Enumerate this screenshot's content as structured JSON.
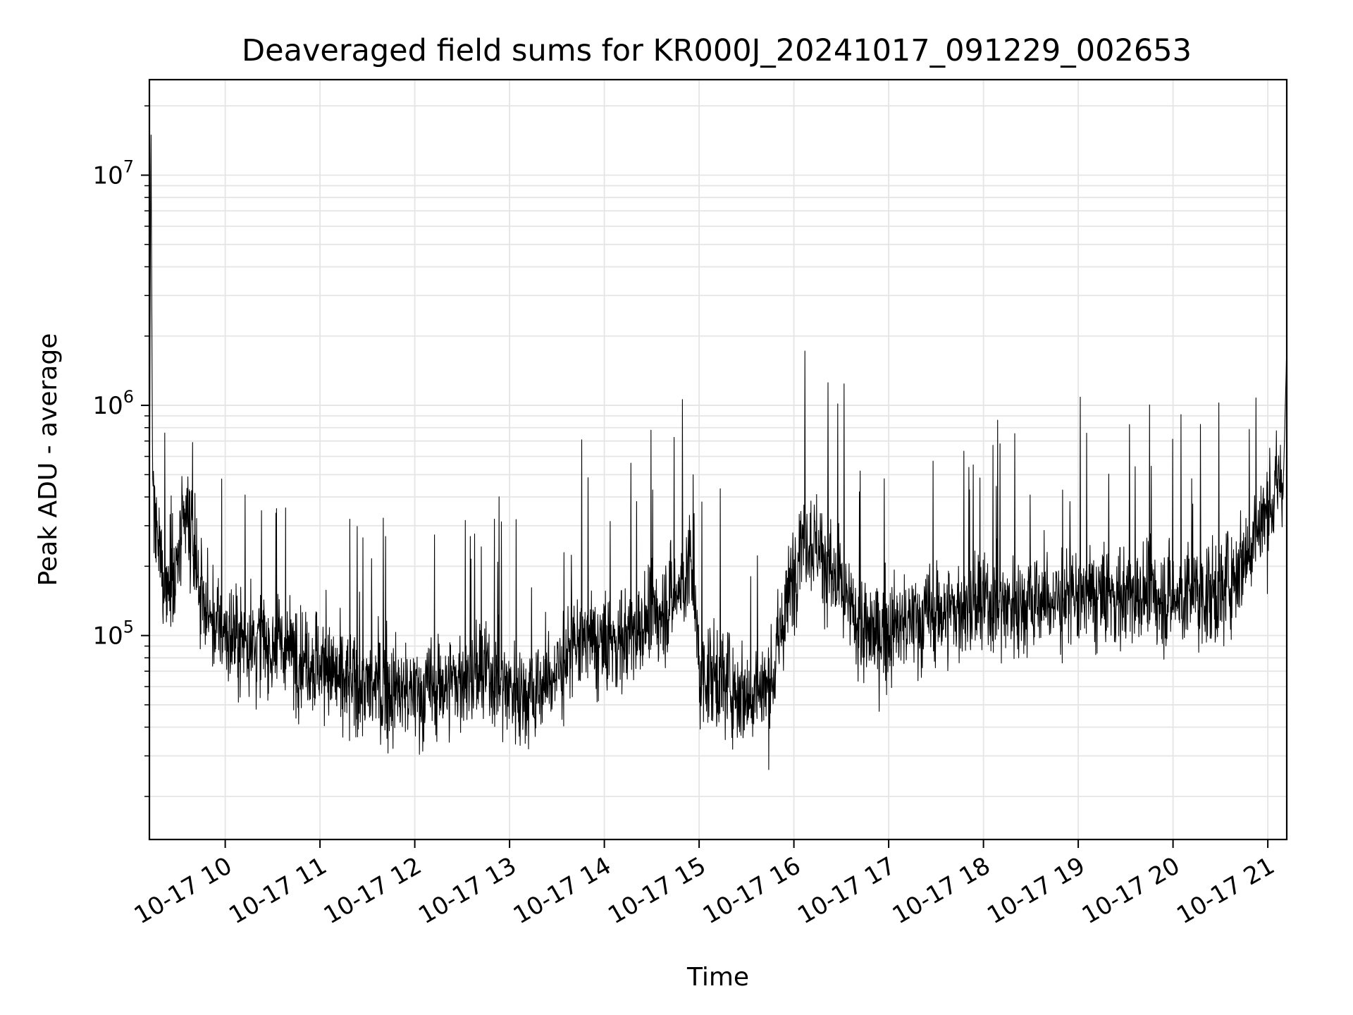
{
  "chart_data": {
    "type": "line",
    "title": "Deaveraged field sums for KR000J_20241017_091229_002653",
    "xlabel": "Time",
    "ylabel": "Peak ADU - average",
    "x_ticks": [
      "10-17 10",
      "10-17 11",
      "10-17 12",
      "10-17 13",
      "10-17 14",
      "10-17 15",
      "10-17 16",
      "10-17 17",
      "10-17 18",
      "10-17 19",
      "10-17 20",
      "10-17 21"
    ],
    "y_ticks": [
      {
        "base": "10",
        "exp": "5",
        "value": 100000
      },
      {
        "base": "10",
        "exp": "6",
        "value": 1000000
      },
      {
        "base": "10",
        "exp": "7",
        "value": 10000000
      }
    ],
    "y_scale": "log",
    "xlim": [
      "2024-10-17 09:12",
      "2024-10-17 21:12"
    ],
    "ylim": [
      13000,
      26000000
    ],
    "grid": true,
    "line_color": "#000000",
    "grid_color": "#e5e5e5",
    "series": [
      {
        "points": [
          [
            "2024-10-17 09:12",
            300000
          ],
          [
            "2024-10-17 09:13",
            18500000
          ],
          [
            "2024-10-17 09:14",
            500000
          ],
          [
            "2024-10-17 09:16",
            250000
          ],
          [
            "2024-10-17 09:20",
            200000
          ],
          [
            "2024-10-17 09:25",
            150000
          ],
          [
            "2024-10-17 09:30",
            200000
          ],
          [
            "2024-10-17 09:35",
            330000
          ],
          [
            "2024-10-17 09:40",
            230000
          ],
          [
            "2024-10-17 09:45",
            150000
          ],
          [
            "2024-10-17 09:50",
            120000
          ],
          [
            "2024-10-17 10:00",
            100000
          ],
          [
            "2024-10-17 10:15",
            95000
          ],
          [
            "2024-10-17 10:30",
            90000
          ],
          [
            "2024-10-17 10:45",
            85000
          ],
          [
            "2024-10-17 11:00",
            75000
          ],
          [
            "2024-10-17 11:15",
            62000
          ],
          [
            "2024-10-17 11:30",
            60000
          ],
          [
            "2024-10-17 11:45",
            58000
          ],
          [
            "2024-10-17 12:00",
            55000
          ],
          [
            "2024-10-17 12:15",
            60000
          ],
          [
            "2024-10-17 12:30",
            65000
          ],
          [
            "2024-10-17 12:45",
            68000
          ],
          [
            "2024-10-17 13:00",
            60000
          ],
          [
            "2024-10-17 13:15",
            55000
          ],
          [
            "2024-10-17 13:30",
            70000
          ],
          [
            "2024-10-17 13:45",
            95000
          ],
          [
            "2024-10-17 14:00",
            90000
          ],
          [
            "2024-10-17 14:15",
            100000
          ],
          [
            "2024-10-17 14:30",
            115000
          ],
          [
            "2024-10-17 14:45",
            150000
          ],
          [
            "2024-10-17 14:55",
            200000
          ],
          [
            "2024-10-17 15:00",
            70000
          ],
          [
            "2024-10-17 15:15",
            65000
          ],
          [
            "2024-10-17 15:30",
            55000
          ],
          [
            "2024-10-17 15:45",
            60000
          ],
          [
            "2024-10-17 15:55",
            130000
          ],
          [
            "2024-10-17 16:05",
            280000
          ],
          [
            "2024-10-17 16:15",
            250000
          ],
          [
            "2024-10-17 16:30",
            150000
          ],
          [
            "2024-10-17 16:45",
            100000
          ],
          [
            "2024-10-17 17:00",
            105000
          ],
          [
            "2024-10-17 17:30",
            125000
          ],
          [
            "2024-10-17 18:00",
            135000
          ],
          [
            "2024-10-17 18:30",
            140000
          ],
          [
            "2024-10-17 19:00",
            145000
          ],
          [
            "2024-10-17 19:30",
            150000
          ],
          [
            "2024-10-17 20:00",
            145000
          ],
          [
            "2024-10-17 20:30",
            155000
          ],
          [
            "2024-10-17 20:45",
            220000
          ],
          [
            "2024-10-17 21:00",
            350000
          ],
          [
            "2024-10-17 21:10",
            500000
          ],
          [
            "2024-10-17 21:12",
            1800000
          ]
        ]
      }
    ]
  }
}
